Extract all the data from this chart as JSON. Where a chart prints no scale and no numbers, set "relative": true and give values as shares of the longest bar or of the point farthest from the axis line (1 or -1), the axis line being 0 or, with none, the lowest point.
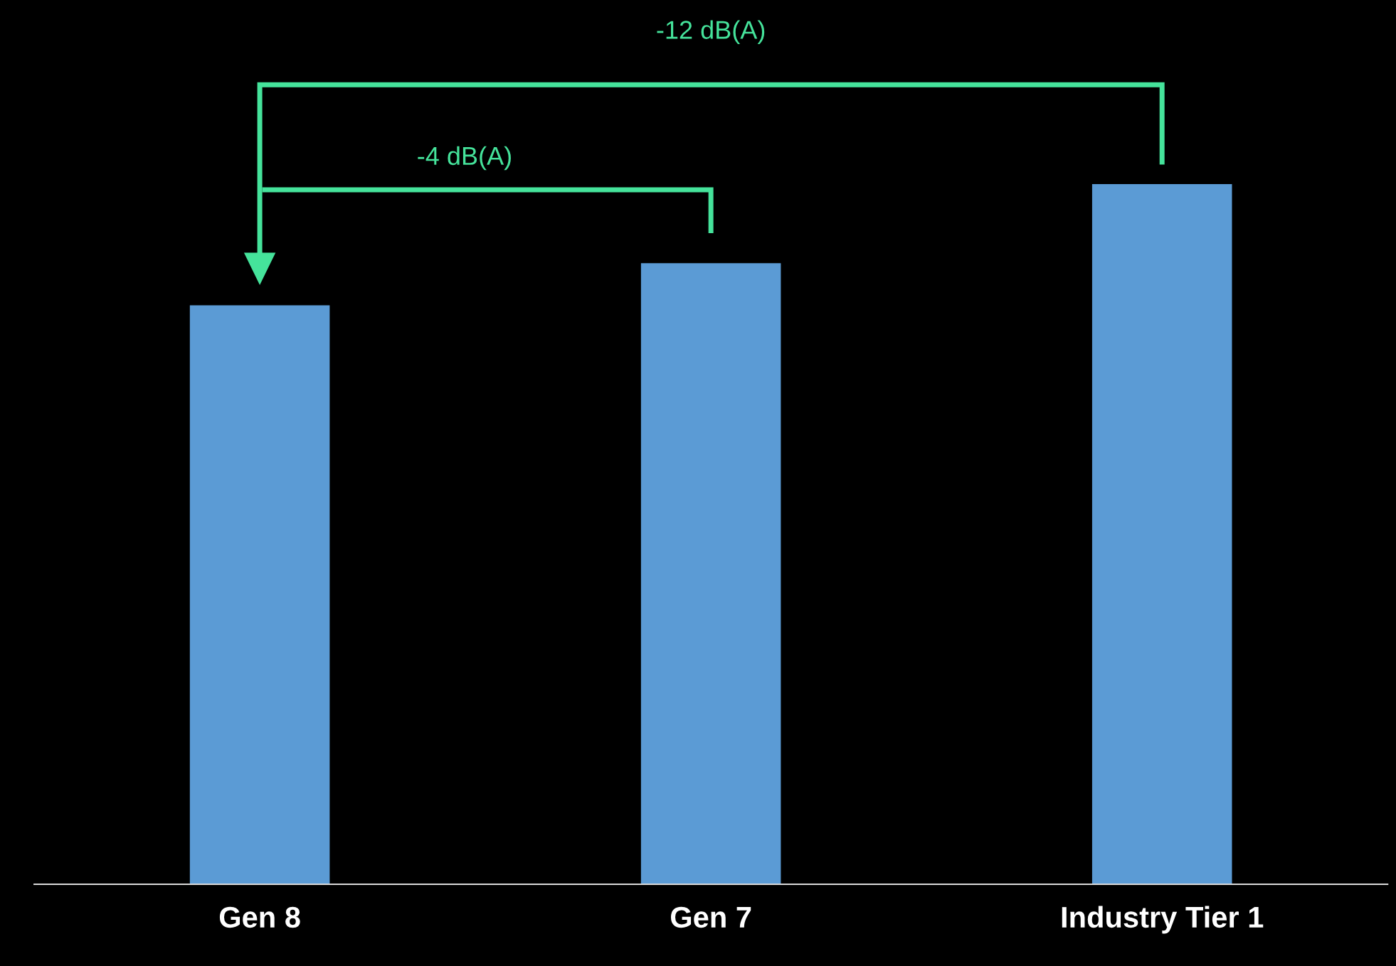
{
  "chart_data": {
    "type": "bar",
    "relative": true,
    "categories": [
      "Gen 8",
      "Gen 7",
      "Industry Tier 1"
    ],
    "values": [
      0.827,
      0.887,
      1
    ],
    "color": "#5b9bd5",
    "annotations": [
      "-12 dB(A)",
      "-4 dB(A)"
    ],
    "grid": false,
    "legend": false
  }
}
